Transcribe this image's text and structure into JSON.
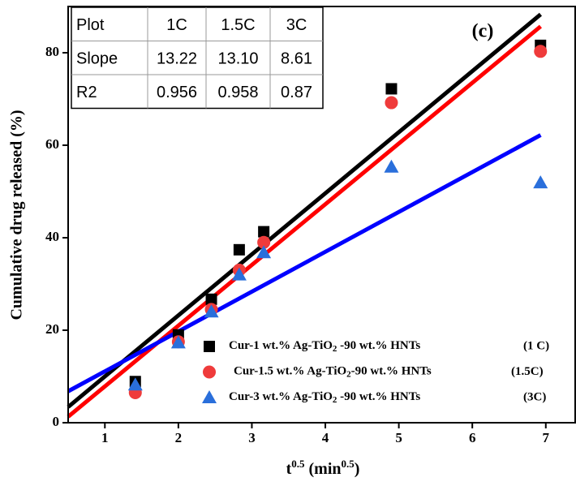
{
  "chart_data": {
    "type": "scatter",
    "ylabel": "Cumulative drug released (%)",
    "xlabel": [
      "t",
      "0.5",
      " (min",
      "0.5",
      ")"
    ],
    "annotation": "(c)",
    "xlim": [
      0.5,
      7.4
    ],
    "ylim": [
      0,
      90
    ],
    "xticks": [
      1,
      2,
      3,
      4,
      5,
      6,
      7
    ],
    "yticks": [
      0,
      20,
      40,
      60,
      80
    ],
    "x": [
      1.414,
      2,
      2.449,
      2.828,
      3.162,
      4.899,
      6.928
    ],
    "series": [
      {
        "name": [
          "Cur-1 wt.% Ag-TiO",
          "2",
          " -90 wt.% HNTs"
        ],
        "tag": "(1 C)",
        "marker": "square",
        "color": "#000000",
        "values": [
          8.9,
          19,
          26.7,
          37.4,
          41.3,
          72.2,
          81.6
        ]
      },
      {
        "name": [
          "Cur-1.5 wt.% Ag-TiO",
          "2",
          "-90 wt.% HNTs"
        ],
        "tag": "(1.5C)",
        "marker": "circle",
        "color": "#ef3b3b",
        "values": [
          6.5,
          17.5,
          24.5,
          33,
          39,
          69.2,
          80.3
        ]
      },
      {
        "name": [
          "Cur-3 wt.% Ag-TiO",
          "2",
          " -90 wt.% HNTs"
        ],
        "tag": "(3C)",
        "marker": "triangle",
        "color": "#2a6fdb",
        "values": [
          8.2,
          17.3,
          24,
          32,
          36.8,
          55.3,
          51.9
        ]
      }
    ],
    "fits": [
      {
        "color": "#000000",
        "x": [
          0.5,
          6.93
        ],
        "values": [
          3.4,
          88.3
        ]
      },
      {
        "color": "#ff0000",
        "x": [
          0.5,
          6.93
        ],
        "values": [
          1.3,
          85.7
        ]
      },
      {
        "color": "#0000ff",
        "x": [
          0.5,
          6.93
        ],
        "values": [
          6.8,
          62.2
        ]
      }
    ],
    "table": [
      [
        "Plot",
        "1C",
        "1.5C",
        "3C"
      ],
      [
        "Slope",
        "13.22",
        "13.10",
        "8.61"
      ],
      [
        "R2",
        "0.956",
        "0.958",
        "0.87"
      ]
    ]
  }
}
